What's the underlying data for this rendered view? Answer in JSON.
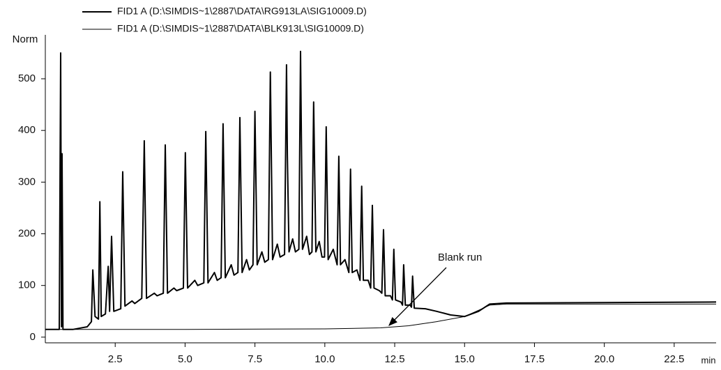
{
  "chart_data": {
    "type": "line",
    "legend": "top-left",
    "y_axis_label": "Norm",
    "x_axis_label": "min",
    "annotation": "Blank run",
    "xlim": [
      0,
      24
    ],
    "ylim": [
      -11,
      585
    ],
    "xticks": [
      2.5,
      {
        "value": 5,
        "label": "5.0"
      },
      7.5,
      {
        "value": 10,
        "label": "10.0"
      },
      12.5,
      {
        "value": 15,
        "label": "15.0"
      },
      17.5,
      {
        "value": 20,
        "label": "20.0"
      },
      22.5
    ],
    "yticks": [
      0,
      100,
      200,
      300,
      400,
      500
    ],
    "series": [
      {
        "name": "FID1 A (D:\\SIMDIS~1\\2887\\DATA\\RG913LA\\SIG10009.D)",
        "color": "#000000",
        "width": 2,
        "x": [
          0,
          0.5,
          0.55,
          0.58,
          0.6,
          0.63,
          1.0,
          1.5,
          1.65,
          1.7,
          1.78,
          1.9,
          1.95,
          2.0,
          2.15,
          2.25,
          2.3,
          2.37,
          2.45,
          2.7,
          2.77,
          2.85,
          3.1,
          3.2,
          3.45,
          3.54,
          3.62,
          3.9,
          4.0,
          4.22,
          4.29,
          4.37,
          4.6,
          4.7,
          4.94,
          5.01,
          5.09,
          5.35,
          5.45,
          5.67,
          5.74,
          5.82,
          6.05,
          6.15,
          6.29,
          6.36,
          6.44,
          6.65,
          6.75,
          6.89,
          6.96,
          7.04,
          7.2,
          7.3,
          7.43,
          7.5,
          7.58,
          7.75,
          7.85,
          7.98,
          8.05,
          8.13,
          8.3,
          8.4,
          8.56,
          8.63,
          8.66,
          8.72,
          8.85,
          8.95,
          9.07,
          9.13,
          9.2,
          9.35,
          9.45,
          9.54,
          9.6,
          9.68,
          9.8,
          9.9,
          9.99,
          10.05,
          10.12,
          10.3,
          10.44,
          10.5,
          10.56,
          10.72,
          10.86,
          10.92,
          10.98,
          11.15,
          11.26,
          11.32,
          11.38,
          11.55,
          11.64,
          11.7,
          11.76,
          11.95,
          12.04,
          12.1,
          12.16,
          12.35,
          12.42,
          12.47,
          12.53,
          12.72,
          12.78,
          12.82,
          12.88,
          13.05,
          13.1,
          13.14,
          13.2,
          13.6,
          14.0,
          14.5,
          15.0,
          15.5,
          15.9,
          16.5,
          20,
          24
        ],
        "values": [
          15,
          15,
          550,
          20,
          355,
          15,
          15,
          20,
          30,
          130,
          40,
          35,
          262,
          40,
          45,
          137,
          50,
          195,
          50,
          55,
          320,
          60,
          70,
          65,
          75,
          380,
          75,
          85,
          80,
          85,
          372,
          85,
          95,
          90,
          95,
          357,
          95,
          110,
          100,
          105,
          398,
          105,
          125,
          110,
          115,
          413,
          115,
          140,
          120,
          125,
          425,
          125,
          150,
          130,
          140,
          437,
          140,
          165,
          145,
          150,
          513,
          150,
          180,
          155,
          160,
          527,
          353,
          165,
          190,
          165,
          170,
          553,
          170,
          195,
          160,
          165,
          455,
          165,
          185,
          155,
          155,
          407,
          150,
          170,
          140,
          350,
          140,
          150,
          125,
          325,
          125,
          130,
          110,
          292,
          110,
          110,
          95,
          255,
          95,
          90,
          85,
          208,
          80,
          80,
          72,
          170,
          72,
          68,
          62,
          140,
          62,
          62,
          58,
          118,
          56,
          55,
          50,
          43,
          40,
          50,
          64,
          66,
          67,
          68
        ]
      },
      {
        "name": "FID1 A (D:\\SIMDIS~1\\2887\\DATA\\BLK913L\\SIG10009.D)",
        "color": "#000000",
        "width": 1,
        "x": [
          0,
          0.5,
          1,
          5,
          10,
          12,
          13,
          14,
          15,
          15.5,
          15.9,
          16.5,
          24
        ],
        "values": [
          15,
          15,
          15,
          15,
          16,
          18,
          22,
          30,
          40,
          52,
          62,
          64,
          64
        ]
      }
    ]
  }
}
